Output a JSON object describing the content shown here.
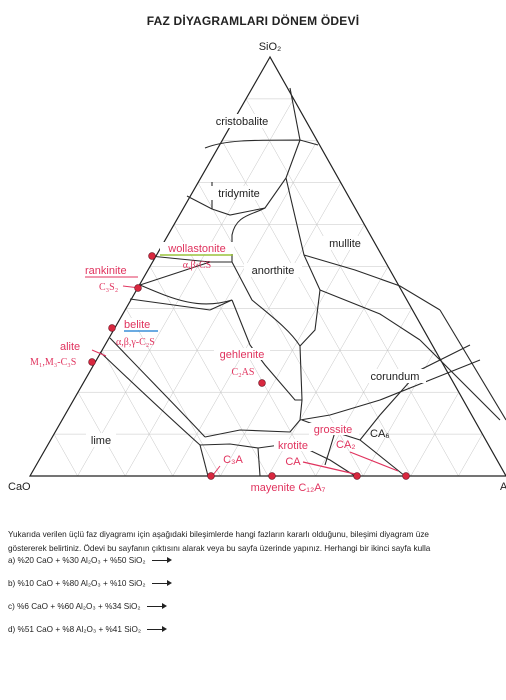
{
  "title": "FAZ DİYAGRAMLARI DÖNEM ÖDEVİ",
  "vertices": {
    "top": "SiO₂",
    "left": "CaO",
    "right": "A"
  },
  "regions": {
    "cristobalite": "cristobalite",
    "tridymite": "tridymite",
    "mullite": "mullite",
    "anorthite": "anorthite",
    "corundum": "corundum",
    "lime": "lime",
    "gehlenite": "gehlenite",
    "c2as": "C₂AS",
    "c3a": "C₃A",
    "ca6": "CA₆"
  },
  "annotations": {
    "wollastonite": "wollastonite",
    "wollastonite_sub": "α,β‹CS",
    "rankinite": "rankinite",
    "rankinite_sub": "C₃S₂",
    "belite": "belite",
    "belite_sub": "α,β,γ-C₂S",
    "alite": "alite",
    "alite_sub": "M₁,M₃-C₃S",
    "grossite": "grossite",
    "ca2": "CA₂",
    "krotite": "krotite",
    "ca": "CA",
    "mayenite": "mayenite C₁₂A₇"
  },
  "colors": {
    "annotation": "#e0335e",
    "underline_green": "#9ac33c",
    "underline_blue": "#3a8fd9",
    "lines": "#2a2a2a",
    "grid": "#bdbdbd"
  },
  "description_line1": "Yukarıda verilen üçlü faz diyagramı için aşağıdaki bileşimlerde hangi fazların kararlı olduğunu, bileşimi diyagram üze",
  "description_line2": "göstererek belirtiniz. Ödevi bu sayfanın çıktısını alarak veya bu sayfa üzerinde yapınız. Herhangi bir ikinci sayfa kulla",
  "questions": [
    "a)  %20 CaO + %30 Al₂O₃ + %50 SiO₂",
    "b)  %10 CaO + %80 Al₂O₃ + %10 SiO₂",
    "c)  %6 CaO + %60 Al₂O₃ + %34 SiO₂",
    "d)  %51 CaO + %8 Al₂O₃ + %41 SiO₂"
  ]
}
